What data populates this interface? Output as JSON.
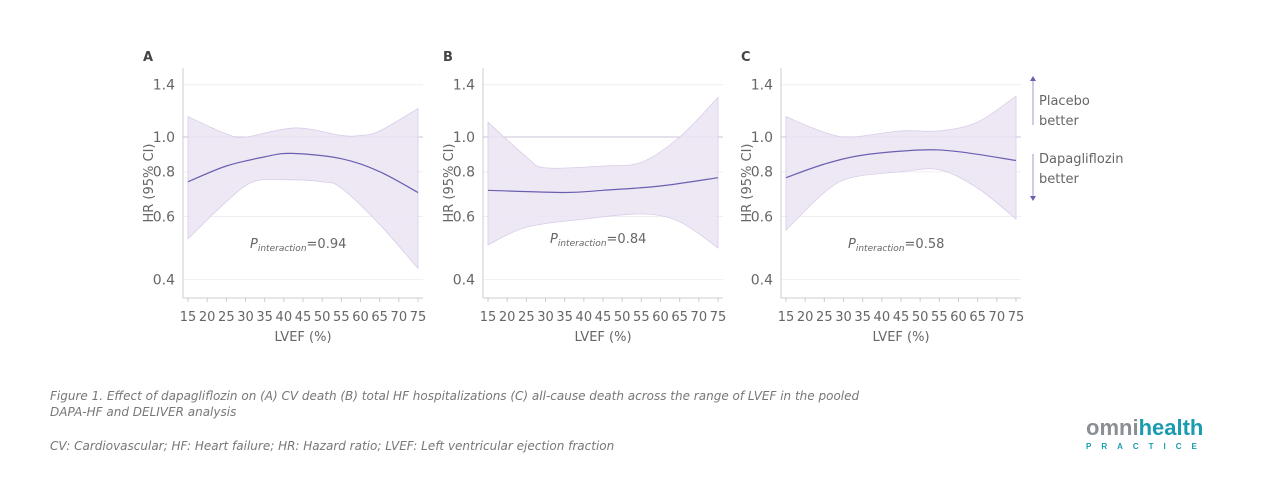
{
  "chart_data": [
    {
      "type": "line",
      "panel": "A",
      "xlabel": "LVEF (%)",
      "ylabel": "HR (95% CI)",
      "yscale": "log",
      "ylim": [
        0.37,
        1.5
      ],
      "yticks": [
        0.4,
        0.6,
        0.8,
        1.0,
        1.4
      ],
      "xticks": [
        15,
        20,
        25,
        30,
        35,
        40,
        45,
        50,
        55,
        60,
        65,
        70,
        75
      ],
      "xlim": [
        15,
        75
      ],
      "p_label": "P",
      "p_sub": "interaction",
      "p_value": "=0.94",
      "hr": {
        "x": [
          15,
          25,
          35,
          42,
          55,
          65,
          75
        ],
        "y": [
          0.75,
          0.83,
          0.88,
          0.9,
          0.87,
          0.8,
          0.7
        ]
      },
      "upper": {
        "x": [
          15,
          25,
          30,
          43,
          55,
          60,
          65,
          75
        ],
        "y": [
          1.14,
          1.02,
          1.0,
          1.06,
          1.01,
          1.01,
          1.04,
          1.2
        ]
      },
      "lower": {
        "x": [
          15,
          25,
          32,
          40,
          50,
          55,
          65,
          75
        ],
        "y": [
          0.52,
          0.66,
          0.75,
          0.76,
          0.75,
          0.72,
          0.57,
          0.43
        ]
      }
    },
    {
      "type": "line",
      "panel": "B",
      "xlabel": "LVEF (%)",
      "ylabel": "HR (95% CI)",
      "yscale": "log",
      "ylim": [
        0.37,
        1.5
      ],
      "yticks": [
        0.4,
        0.6,
        0.8,
        1.0,
        1.4
      ],
      "xticks": [
        15,
        20,
        25,
        30,
        35,
        40,
        45,
        50,
        55,
        60,
        65,
        70,
        75
      ],
      "xlim": [
        15,
        75
      ],
      "p_label": "P",
      "p_sub": "interaction",
      "p_value": "=0.84",
      "hr": {
        "x": [
          15,
          35,
          45,
          60,
          75
        ],
        "y": [
          0.71,
          0.7,
          0.71,
          0.73,
          0.77
        ]
      },
      "upper": {
        "x": [
          15,
          25,
          30,
          45,
          55,
          65,
          75
        ],
        "y": [
          1.1,
          0.88,
          0.82,
          0.83,
          0.85,
          1.0,
          1.29
        ]
      },
      "lower": {
        "x": [
          15,
          25,
          40,
          55,
          65,
          75
        ],
        "y": [
          0.5,
          0.56,
          0.59,
          0.61,
          0.58,
          0.49
        ]
      }
    },
    {
      "type": "line",
      "panel": "C",
      "xlabel": "LVEF (%)",
      "ylabel": "HR (95% CI)",
      "yscale": "log",
      "ylim": [
        0.37,
        1.5
      ],
      "yticks": [
        0.4,
        0.6,
        0.8,
        1.0,
        1.4
      ],
      "xticks": [
        15,
        20,
        25,
        30,
        35,
        40,
        45,
        50,
        55,
        60,
        65,
        70,
        75
      ],
      "xlim": [
        15,
        75
      ],
      "p_label": "P",
      "p_sub": "interaction",
      "p_value": "=0.58",
      "hr": {
        "x": [
          15,
          25,
          35,
          50,
          60,
          75
        ],
        "y": [
          0.77,
          0.84,
          0.89,
          0.92,
          0.91,
          0.86
        ]
      },
      "upper": {
        "x": [
          15,
          25,
          32,
          45,
          55,
          65,
          75
        ],
        "y": [
          1.14,
          1.03,
          1.0,
          1.04,
          1.04,
          1.1,
          1.3
        ]
      },
      "lower": {
        "x": [
          15,
          25,
          32,
          45,
          55,
          65,
          75
        ],
        "y": [
          0.55,
          0.7,
          0.77,
          0.8,
          0.81,
          0.72,
          0.59
        ]
      }
    }
  ],
  "legend": {
    "up": "Placebo better",
    "down": "Dapagliflozin better"
  },
  "colors": {
    "line": "#6a5fb0",
    "band": "#ebe4f3",
    "ref": "#c8c0d8"
  },
  "caption": {
    "line1": "Figure 1. Effect of dapagliflozin on (A) CV death (B) total HF hospitalizations (C) all-cause death across the range of LVEF in the pooled DAPA-HF and DELIVER analysis",
    "line2": "CV: Cardiovascular; HF: Heart failure; HR: Hazard ratio; LVEF: Left ventricular ejection fraction"
  },
  "logo": {
    "omni": "omni",
    "health": "health",
    "practice": "PRACTICE"
  }
}
